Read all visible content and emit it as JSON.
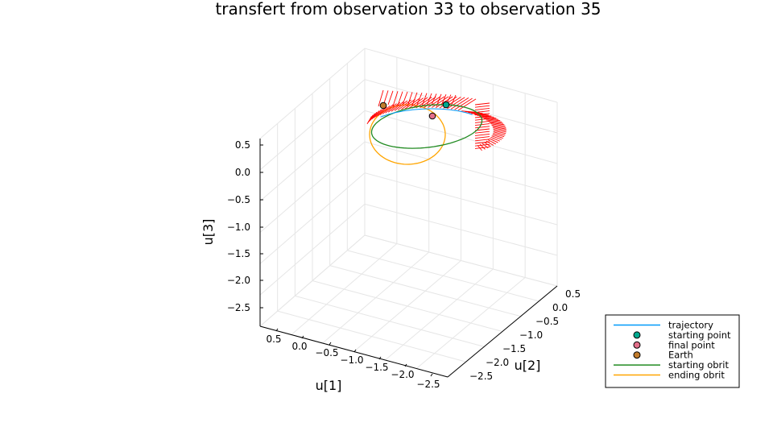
{
  "chart_data": {
    "type": "line",
    "projection": "3d",
    "title": "transfert from observation 33 to observation 35",
    "xlabel": "u[1]",
    "ylabel": "u[2]",
    "zlabel": "u[3]",
    "xticks": [
      "0.5",
      "0.0",
      "−0.5",
      "−1.0",
      "−1.5",
      "−2.0",
      "−2.5"
    ],
    "yticks": [
      "−2.5",
      "−2.0",
      "−1.5",
      "−1.0",
      "−0.5",
      "0.0",
      "0.5"
    ],
    "zticks": [
      "0.5",
      "0.0",
      "−0.5",
      "−1.0",
      "−1.5",
      "−2.0",
      "−2.5"
    ],
    "grid": true,
    "legend_position": "bottom-right",
    "colors": {
      "trajectory": "#009AFA",
      "starting_point": "#00A98F",
      "final_point": "#E26F8A",
      "earth": "#C27C2C",
      "starting_orbit": "#228B22",
      "ending_orbit": "#FFA500",
      "thrust": "#FF0000"
    },
    "legend": [
      {
        "label": "trajectory",
        "kind": "line",
        "color": "#009AFA"
      },
      {
        "label": "starting point",
        "kind": "marker",
        "color": "#00A98F"
      },
      {
        "label": "final point",
        "kind": "marker",
        "color": "#E26F8A"
      },
      {
        "label": "Earth",
        "kind": "marker",
        "color": "#C27C2C"
      },
      {
        "label": "starting obrit",
        "kind": "line",
        "color": "#228B22"
      },
      {
        "label": "ending obrit",
        "kind": "line",
        "color": "#FFA500"
      }
    ],
    "points": {
      "starting_point": [
        -0.8,
        -0.5,
        0.3
      ],
      "final_point": [
        -0.3,
        -0.3,
        0.1
      ],
      "earth": [
        0.0,
        0.0,
        0.0
      ]
    }
  }
}
